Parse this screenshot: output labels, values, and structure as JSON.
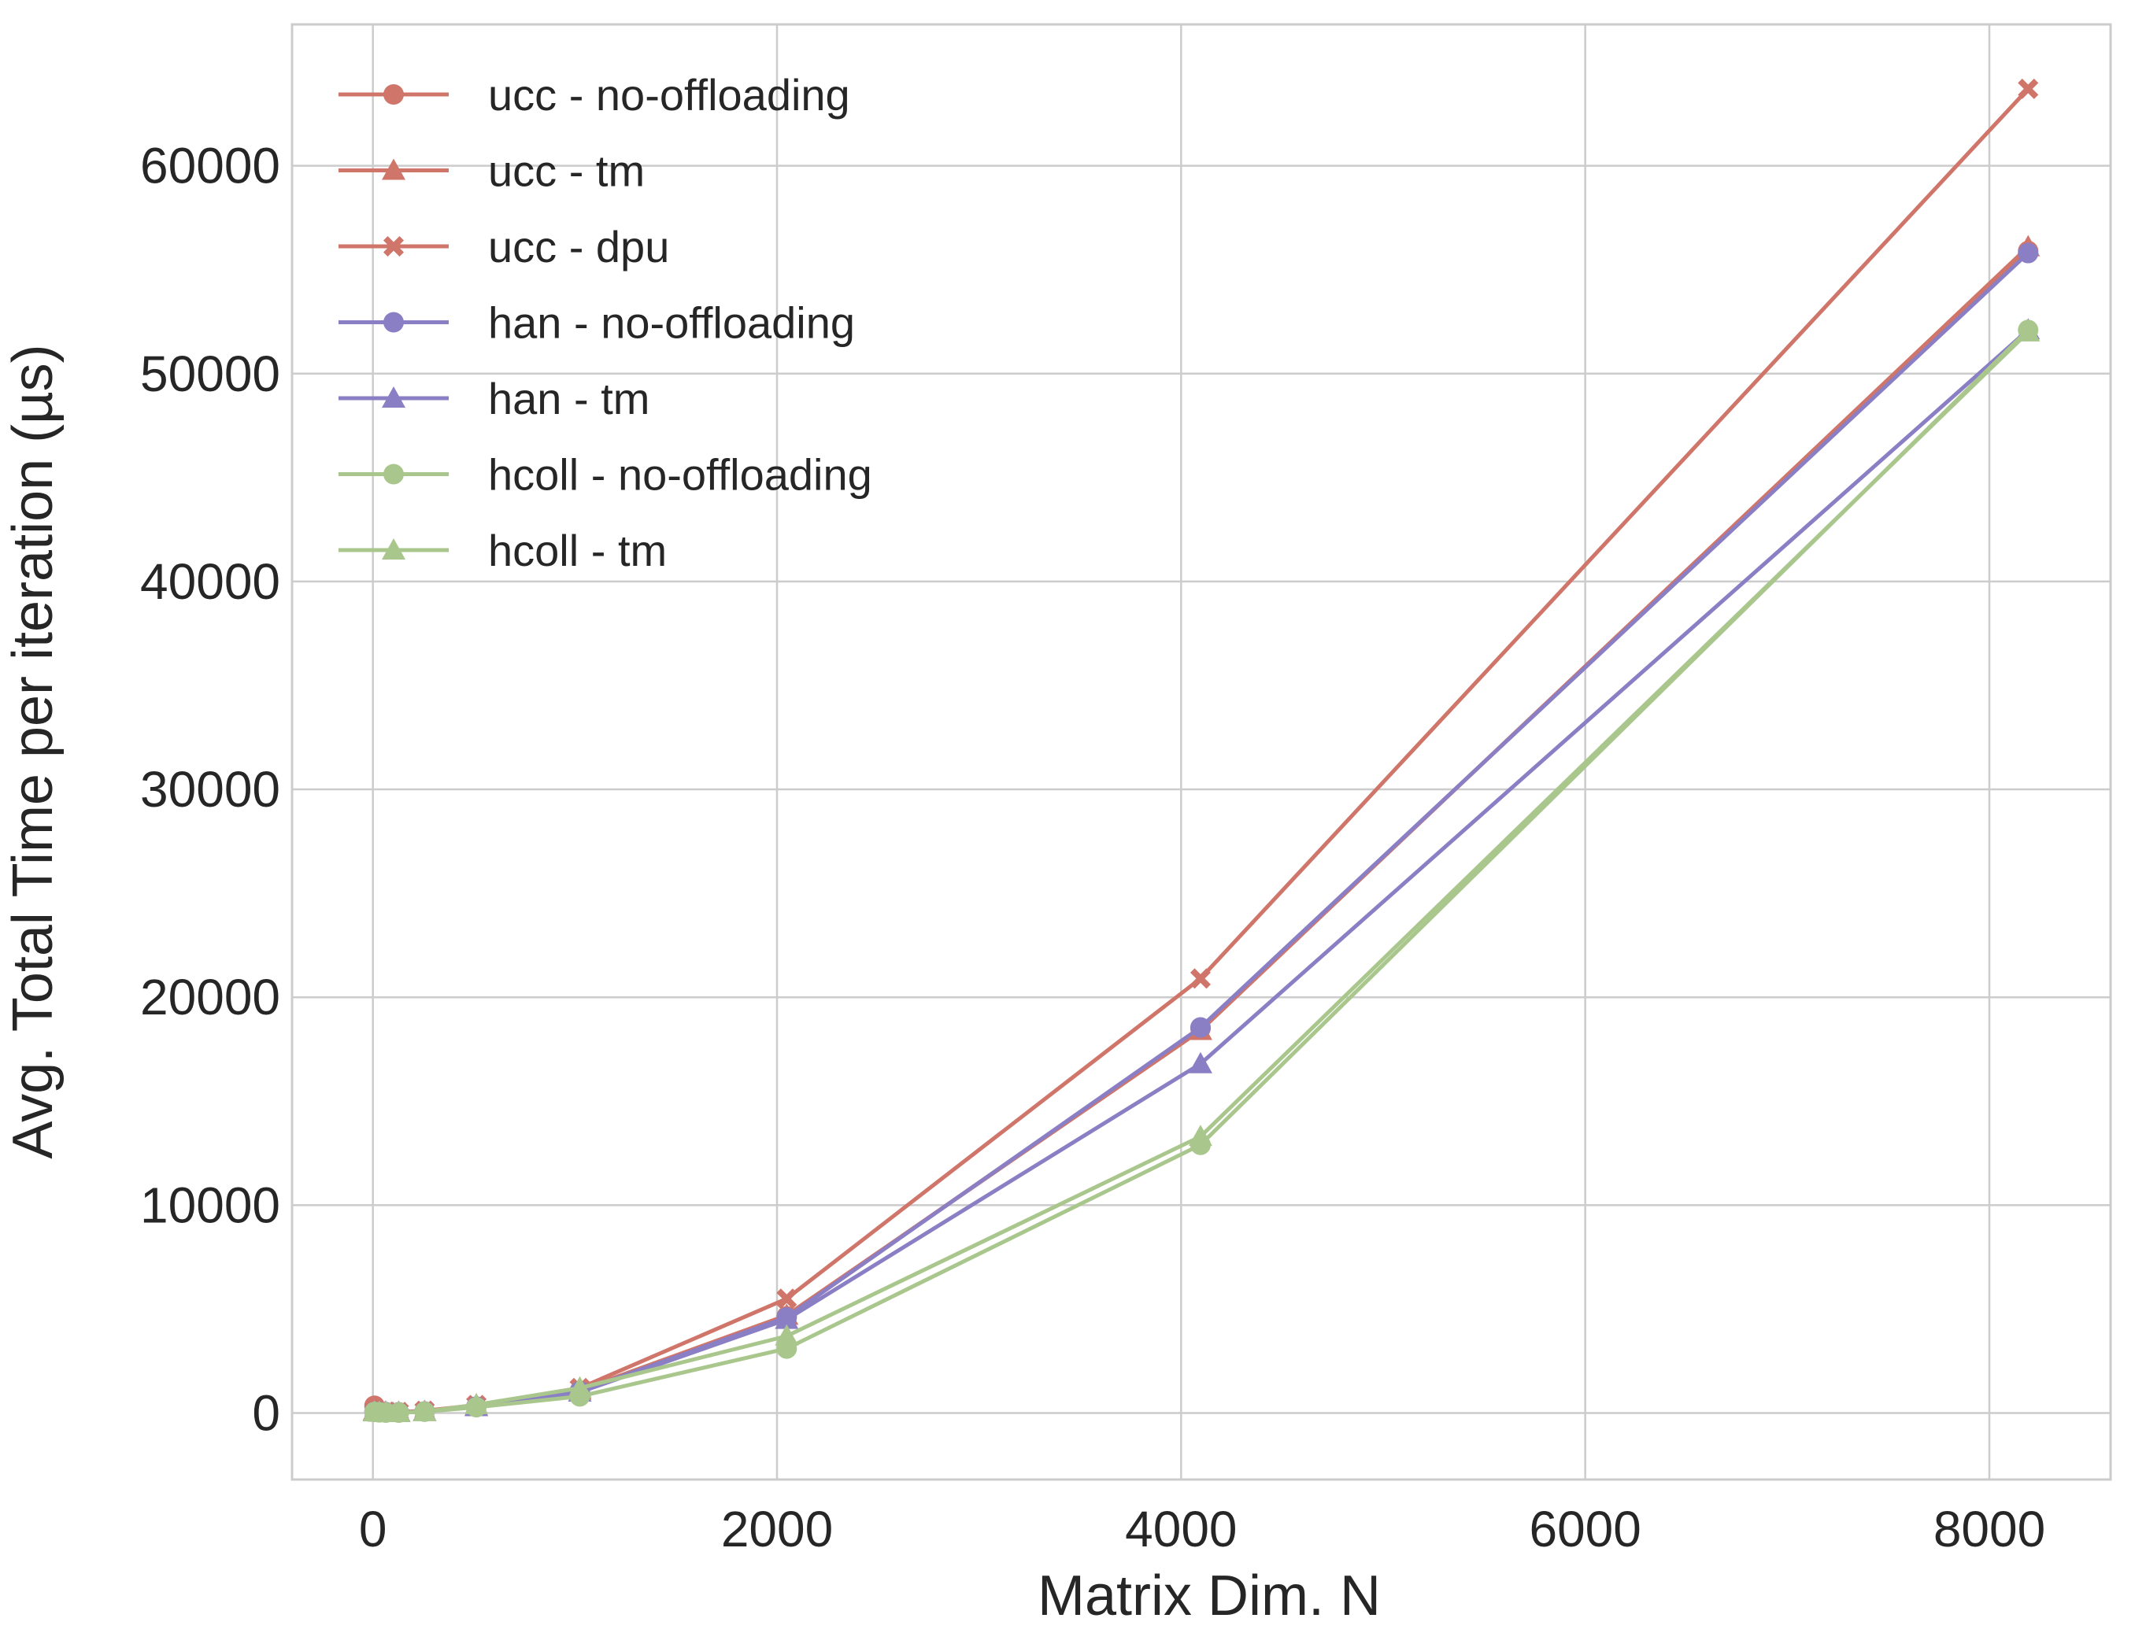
{
  "chart_data": {
    "type": "line",
    "xlabel": "Matrix Dim. N",
    "ylabel": "Avg. Total Time per iteration (µs)",
    "xlim": [
      -400,
      8600
    ],
    "ylim": [
      -3200,
      66800
    ],
    "xticks": [
      0,
      2000,
      4000,
      6000,
      8000
    ],
    "yticks": [
      0,
      10000,
      20000,
      30000,
      40000,
      50000,
      60000
    ],
    "grid": true,
    "legend_position": "top-left",
    "x": [
      8,
      32,
      64,
      128,
      256,
      512,
      1024,
      2048,
      4096,
      8192
    ],
    "series": [
      {
        "name": "ucc - no-offloading",
        "color": "#d0756a",
        "marker": "circle",
        "values": [
          350,
          80,
          40,
          30,
          70,
          300,
          1050,
          4650,
          18500,
          55900
        ]
      },
      {
        "name": "ucc - tm",
        "color": "#d0756a",
        "marker": "triangle",
        "values": [
          100,
          60,
          40,
          30,
          80,
          320,
          1100,
          4700,
          18400,
          56100
        ]
      },
      {
        "name": "ucc - dpu",
        "color": "#d0756a",
        "marker": "x",
        "values": [
          150,
          90,
          60,
          50,
          110,
          380,
          1200,
          5500,
          20900,
          63700
        ]
      },
      {
        "name": "han - no-offloading",
        "color": "#8a7fc4",
        "marker": "circle",
        "values": [
          60,
          40,
          30,
          30,
          70,
          310,
          1050,
          4600,
          18550,
          55800
        ]
      },
      {
        "name": "han - tm",
        "color": "#8a7fc4",
        "marker": "triangle",
        "values": [
          60,
          40,
          30,
          30,
          70,
          300,
          1000,
          4500,
          16800,
          52100
        ]
      },
      {
        "name": "hcoll - no-offloading",
        "color": "#a9c78c",
        "marker": "circle",
        "values": [
          50,
          30,
          20,
          20,
          60,
          280,
          800,
          3100,
          12900,
          52100
        ]
      },
      {
        "name": "hcoll - tm",
        "color": "#a9c78c",
        "marker": "triangle",
        "values": [
          50,
          30,
          20,
          20,
          60,
          400,
          1200,
          3700,
          13300,
          52000
        ]
      }
    ]
  }
}
